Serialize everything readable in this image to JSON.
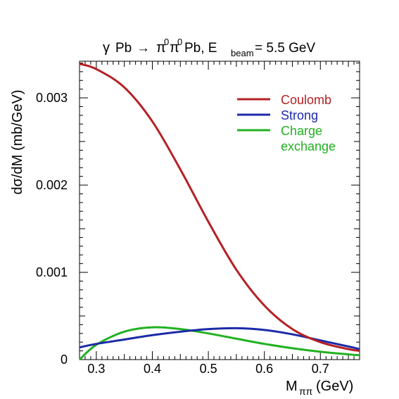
{
  "chart_data": {
    "type": "line",
    "title": {
      "gamma": "γ",
      "pb1": "Pb",
      "arrow": "→",
      "pi1": "π",
      "sup1": "0",
      "pi2": "π",
      "sup2": "0",
      "pb2": "Pb, E",
      "sub": "beam",
      "tail": "= 5.5 GeV"
    },
    "ylabel": "dσ/dM (mb/GeV)",
    "xlabel": {
      "main": "M",
      "sub": "ππ",
      "unit": "(GeV)"
    },
    "xlim": [
      0.27,
      0.77
    ],
    "ylim": [
      0,
      0.00342
    ],
    "xticks": [
      0.3,
      0.4,
      0.5,
      0.6,
      0.7
    ],
    "xtick_labels": [
      "0.3",
      "0.4",
      "0.5",
      "0.6",
      "0.7"
    ],
    "yticks": [
      0,
      0.001,
      0.002,
      0.003
    ],
    "ytick_labels": [
      "0",
      "0.001",
      "0.002",
      "0.003"
    ],
    "grid": false,
    "legend_position": "top-right",
    "x": [
      0.27,
      0.3,
      0.35,
      0.4,
      0.45,
      0.5,
      0.55,
      0.6,
      0.65,
      0.7,
      0.75,
      0.77
    ],
    "series": [
      {
        "name": "Coulomb",
        "color": "#b52025",
        "values": [
          0.00339,
          0.00333,
          0.00312,
          0.00273,
          0.00218,
          0.00158,
          0.00103,
          0.00062,
          0.00035,
          0.0002,
          0.00012,
          0.0001
        ]
      },
      {
        "name": "Strong",
        "color": "#1c2aa8",
        "values": [
          0.00014,
          0.00018,
          0.00023,
          0.00028,
          0.00032,
          0.00035,
          0.00036,
          0.00034,
          0.00029,
          0.00022,
          0.00015,
          0.00012
        ]
      },
      {
        "name": [
          "Charge",
          "exchange"
        ],
        "color": "#22b122",
        "values": [
          0.0,
          0.00017,
          0.00032,
          0.00037,
          0.00035,
          0.0003,
          0.00024,
          0.00018,
          0.00013,
          9e-05,
          6e-05,
          5e-05
        ]
      }
    ]
  }
}
